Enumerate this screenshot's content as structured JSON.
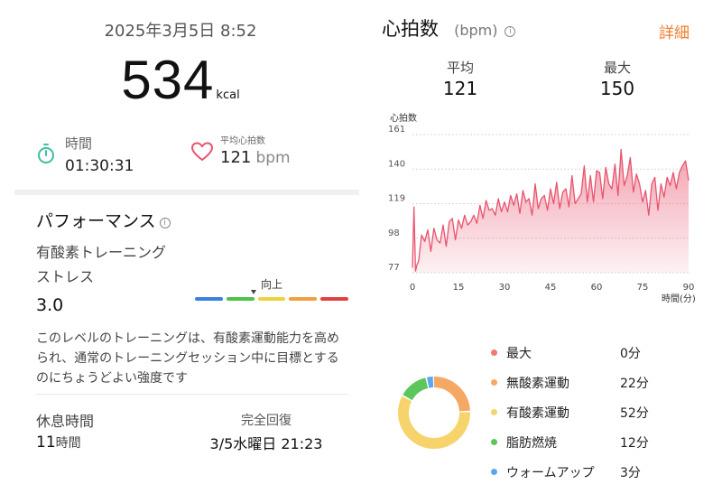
{
  "summary": {
    "datetime": "2025年3月5日 8:52",
    "calories_value": "534",
    "calories_unit": "kcal",
    "duration_label": "時間",
    "duration_value": "01:30:31",
    "avg_hr_label": "平均心拍数",
    "avg_hr_value": "121",
    "avg_hr_unit": "bpm"
  },
  "performance": {
    "title": "パフォーマンス",
    "info_glyph": "i",
    "stress_label_1": "有酸素トレーニング",
    "stress_label_2": "ストレス",
    "stress_value": "3.0",
    "trend_label": "向上",
    "trend_level": 0.38,
    "scale_colors": [
      "#3b7fe0",
      "#4cc24c",
      "#f0d040",
      "#f0a040",
      "#e04040"
    ],
    "description": "このレベルのトレーニングは、有酸素運動能力を高められ、通常のトレーニングセッション中に目標とするのにちょうどよい強度です"
  },
  "recovery": {
    "rest_label": "休息時間",
    "rest_value": "11",
    "rest_unit": "時間",
    "full_label": "完全回復",
    "full_value": "3/5水曜日 21:23"
  },
  "heart_rate": {
    "title": "心拍数",
    "unit": "(bpm)",
    "info_glyph": "i",
    "detail_link": "詳細",
    "avg_label": "平均",
    "avg_value": "121",
    "max_label": "最大",
    "max_value": "150"
  },
  "chart_data": {
    "type": "area",
    "title": "",
    "ylabel": "心拍数",
    "xlabel": "時間(分)",
    "xlim": [
      0,
      90
    ],
    "ylim": [
      77,
      161
    ],
    "yticks": [
      161,
      140,
      119,
      98,
      77
    ],
    "xticks": [
      0,
      15,
      30,
      45,
      60,
      75,
      90
    ],
    "color": "#e8546f",
    "grid": true,
    "x": [
      0,
      0.5,
      1,
      1.5,
      2,
      3,
      4,
      5,
      6,
      7,
      8,
      9,
      10,
      11,
      12,
      13,
      14,
      15,
      16,
      17,
      18,
      19,
      20,
      21,
      22,
      23,
      24,
      25,
      26,
      27,
      28,
      29,
      30,
      31,
      32,
      33,
      34,
      35,
      36,
      37,
      38,
      39,
      40,
      41,
      42,
      43,
      44,
      45,
      46,
      47,
      48,
      49,
      50,
      51,
      52,
      53,
      54,
      55,
      56,
      57,
      58,
      59,
      60,
      61,
      62,
      63,
      64,
      65,
      66,
      67,
      68,
      69,
      70,
      71,
      72,
      73,
      74,
      75,
      76,
      77,
      78,
      79,
      80,
      81,
      82,
      83,
      84,
      85,
      86,
      87,
      88,
      89,
      90
    ],
    "y": [
      80,
      117,
      78,
      82,
      84,
      100,
      96,
      103,
      90,
      104,
      97,
      95,
      106,
      93,
      108,
      110,
      97,
      109,
      104,
      112,
      106,
      108,
      112,
      107,
      118,
      110,
      121,
      115,
      116,
      112,
      122,
      114,
      120,
      114,
      124,
      118,
      125,
      113,
      127,
      120,
      122,
      112,
      131,
      116,
      122,
      124,
      115,
      128,
      119,
      132,
      116,
      126,
      128,
      117,
      136,
      119,
      122,
      125,
      142,
      120,
      136,
      120,
      139,
      138,
      122,
      141,
      131,
      128,
      143,
      124,
      152,
      130,
      136,
      147,
      126,
      137,
      131,
      120,
      127,
      112,
      131,
      135,
      115,
      131,
      123,
      135,
      130,
      138,
      128,
      138,
      142,
      145,
      133
    ]
  },
  "zones": {
    "legend": [
      {
        "label": "最大",
        "value": "0分",
        "minutes": 0,
        "color": "#ef7b6c"
      },
      {
        "label": "無酸素運動",
        "value": "22分",
        "minutes": 22,
        "color": "#f5a863"
      },
      {
        "label": "有酸素運動",
        "value": "52分",
        "minutes": 52,
        "color": "#f7d46b"
      },
      {
        "label": "脂肪燃焼",
        "value": "12分",
        "minutes": 12,
        "color": "#5cc65c"
      },
      {
        "label": "ウォームアップ",
        "value": "3分",
        "minutes": 3,
        "color": "#5aa6ef"
      }
    ]
  }
}
